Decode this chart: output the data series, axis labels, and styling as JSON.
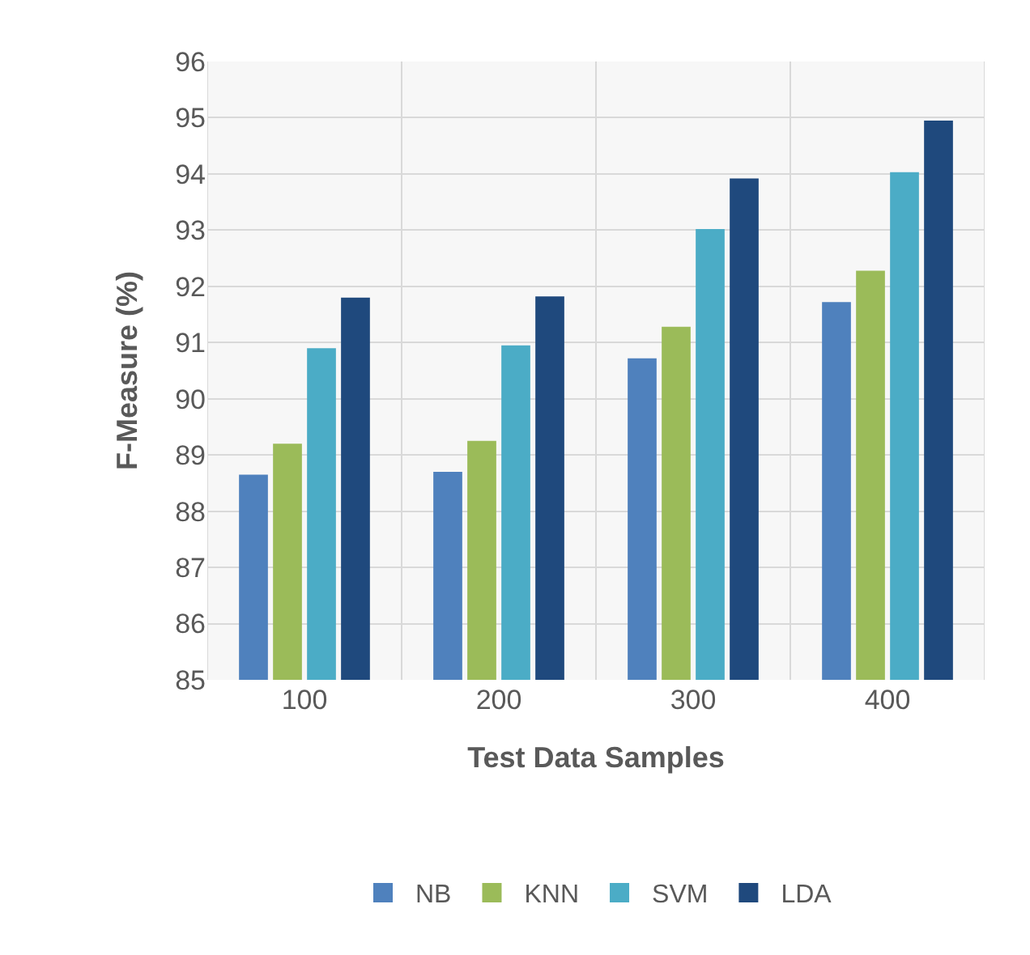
{
  "chart_data": {
    "type": "bar",
    "xlabel": "Test Data Samples",
    "ylabel": "F-Measure (%)",
    "categories": [
      "100",
      "200",
      "300",
      "400"
    ],
    "series": [
      {
        "name": "NB",
        "color": "#4f81bd",
        "values": [
          88.65,
          88.7,
          90.72,
          91.72
        ]
      },
      {
        "name": "KNN",
        "color": "#9bbb59",
        "values": [
          89.2,
          89.25,
          91.28,
          92.28
        ]
      },
      {
        "name": "SVM",
        "color": "#4bacc6",
        "values": [
          90.9,
          90.95,
          93.02,
          94.03
        ]
      },
      {
        "name": "LDA",
        "color": "#1f497d",
        "values": [
          91.8,
          91.82,
          93.92,
          94.95
        ]
      }
    ],
    "ylim": [
      85,
      96
    ],
    "yticks": [
      85,
      86,
      87,
      88,
      89,
      90,
      91,
      92,
      93,
      94,
      95,
      96
    ],
    "grid": true,
    "legend": "bottom"
  }
}
